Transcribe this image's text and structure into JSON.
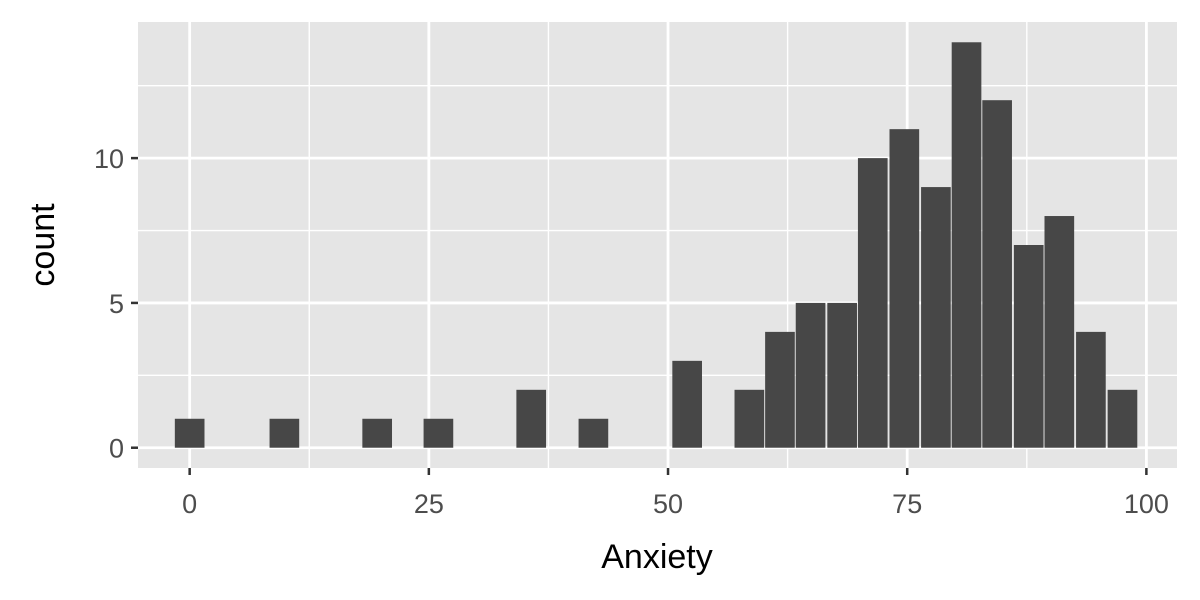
{
  "chart_data": {
    "type": "bar",
    "subtype": "histogram",
    "xlabel": "Anxiety",
    "ylabel": "count",
    "xlim": [
      -5.4,
      103.2
    ],
    "ylim": [
      -0.7,
      14.7
    ],
    "bin_width": 3.1,
    "x_ticks": [
      0,
      25,
      50,
      75,
      100
    ],
    "x_tick_labels": [
      "0",
      "25",
      "50",
      "75",
      "100"
    ],
    "y_ticks": [
      0,
      5,
      10
    ],
    "y_tick_labels": [
      "0",
      "5",
      "10"
    ],
    "bins": [
      {
        "x": 0.0,
        "count": 1
      },
      {
        "x": 9.9,
        "count": 1
      },
      {
        "x": 19.6,
        "count": 1
      },
      {
        "x": 26.0,
        "count": 1
      },
      {
        "x": 35.7,
        "count": 2
      },
      {
        "x": 42.2,
        "count": 1
      },
      {
        "x": 52.0,
        "count": 3
      },
      {
        "x": 58.5,
        "count": 2
      },
      {
        "x": 61.7,
        "count": 4
      },
      {
        "x": 64.9,
        "count": 5
      },
      {
        "x": 68.2,
        "count": 5
      },
      {
        "x": 71.4,
        "count": 10
      },
      {
        "x": 74.7,
        "count": 11
      },
      {
        "x": 78.0,
        "count": 9
      },
      {
        "x": 81.2,
        "count": 14
      },
      {
        "x": 84.4,
        "count": 12
      },
      {
        "x": 87.7,
        "count": 7
      },
      {
        "x": 90.9,
        "count": 8
      },
      {
        "x": 94.2,
        "count": 4
      },
      {
        "x": 97.5,
        "count": 2
      }
    ],
    "grid": true,
    "legend": "none",
    "colors": {
      "panel_background": "#e5e5e5",
      "grid_line": "#ffffff",
      "bar_fill": "#474747",
      "tick_mark": "#333333"
    }
  }
}
